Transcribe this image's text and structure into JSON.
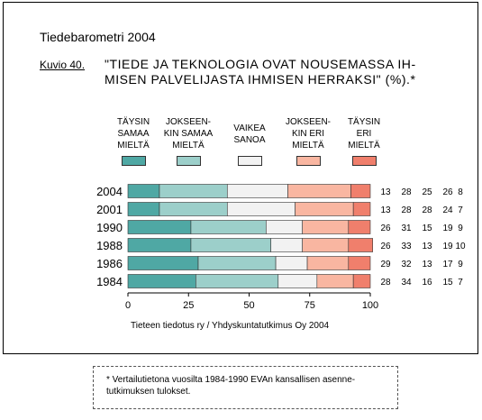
{
  "header": "Tiedebarometri 2004",
  "kuvio_label": "Kuvio 40.",
  "title_line1": "\"TIEDE JA TEKNOLOGIA OVAT NOUSEMASSA IH-",
  "title_line2": "MISEN PALVELIJASTA IHMISEN HERRAKSI\" (%).*",
  "source": "Tieteen tiedotus ry / Yhdyskuntatutkimus Oy 2004",
  "note": "* Vertailutietona vuosilta 1984-1990 EVAn kansallisen asenne-tutkimuksen tulokset.",
  "chart_data": {
    "type": "stacked-bar-horizontal",
    "categories": [
      "2004",
      "2001",
      "1990",
      "1988",
      "1986",
      "1984"
    ],
    "series": [
      {
        "name": "TÄYSIN\nSAMAA\nMIELTÄ",
        "color": "#4fa8a4",
        "values": [
          13,
          13,
          26,
          26,
          29,
          28
        ]
      },
      {
        "name": "JOKSEEN-\nKIN SAMAA\nMIELTÄ",
        "color": "#9ccfca",
        "values": [
          28,
          28,
          31,
          33,
          32,
          34
        ]
      },
      {
        "name": "VAIKEA\nSANOA",
        "color": "#f2f2f2",
        "values": [
          25,
          28,
          15,
          13,
          13,
          16
        ]
      },
      {
        "name": "JOKSEEN-\nKIN ERI\nMIELTÄ",
        "color": "#f9b6a1",
        "values": [
          26,
          24,
          19,
          19,
          17,
          15
        ]
      },
      {
        "name": "TÄYSIN\nERI\nMIELTÄ",
        "color": "#f07f6c",
        "values": [
          8,
          7,
          9,
          10,
          9,
          7
        ]
      }
    ],
    "xlim": [
      0,
      100
    ],
    "xticks": [
      0,
      25,
      50,
      75,
      100
    ]
  }
}
